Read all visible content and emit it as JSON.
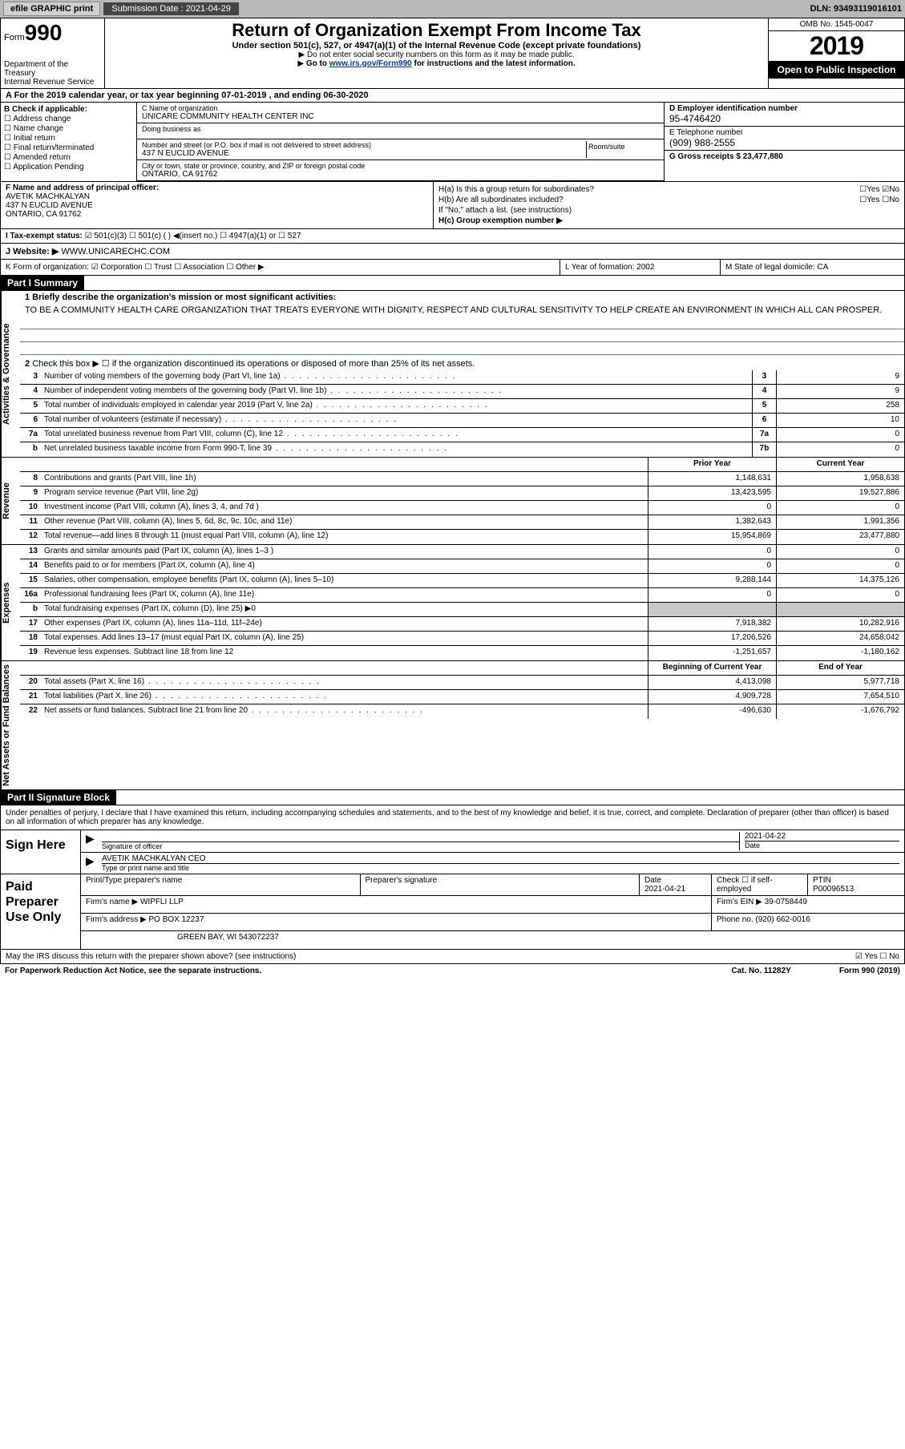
{
  "topbar": {
    "efile": "efile GRAPHIC print",
    "submission_label": "Submission Date : 2021-04-29",
    "dln": "DLN: 93493119016101"
  },
  "header": {
    "form_word": "Form",
    "form_num": "990",
    "dept1": "Department of the Treasury",
    "dept2": "Internal Revenue Service",
    "title": "Return of Organization Exempt From Income Tax",
    "sub1": "Under section 501(c), 527, or 4947(a)(1) of the Internal Revenue Code (except private foundations)",
    "sub2": "Do not enter social security numbers on this form as it may be made public.",
    "sub3_pre": "Go to ",
    "sub3_link": "www.irs.gov/Form990",
    "sub3_post": " for instructions and the latest information.",
    "omb": "OMB No. 1545-0047",
    "year": "2019",
    "otp": "Open to Public Inspection"
  },
  "row_a": "A For the 2019 calendar year, or tax year beginning 07-01-2019   , and ending 06-30-2020",
  "col_b": {
    "title": "B Check if applicable:",
    "items": [
      "Address change",
      "Name change",
      "Initial return",
      "Final return/terminated",
      "Amended return",
      "Application Pending"
    ]
  },
  "col_c": {
    "name_lbl": "C Name of organization",
    "name": "UNICARE COMMUNITY HEALTH CENTER INC",
    "dba_lbl": "Doing business as",
    "dba": "",
    "addr_lbl": "Number and street (or P.O. box if mail is not delivered to street address)",
    "addr": "437 N EUCLID AVENUE",
    "room_lbl": "Room/suite",
    "city_lbl": "City or town, state or province, country, and ZIP or foreign postal code",
    "city": "ONTARIO, CA  91762"
  },
  "col_d": {
    "ein_lbl": "D Employer identification number",
    "ein": "95-4746420",
    "tel_lbl": "E Telephone number",
    "tel": "(909) 988-2555",
    "gross_lbl": "G Gross receipts $ 23,477,880"
  },
  "col_f": {
    "lbl": "F  Name and address of principal officer:",
    "name": "AVETIK MACHKALYAN",
    "addr1": "437 N EUCLID AVENUE",
    "addr2": "ONTARIO, CA  91762"
  },
  "col_h": {
    "ha": "H(a)  Is this a group return for subordinates?",
    "ha_ans": "☐Yes ☑No",
    "hb": "H(b)  Are all subordinates included?",
    "hb_ans": "☐Yes ☐No",
    "hb_note": "If \"No,\" attach a list. (see instructions)",
    "hc": "H(c)  Group exemption number ▶"
  },
  "tax_status": {
    "lbl": "I   Tax-exempt status:",
    "opts": "☑ 501(c)(3)   ☐ 501(c) (  ) ◀(insert no.)   ☐ 4947(a)(1) or   ☐ 527"
  },
  "website": {
    "lbl": "J   Website: ▶",
    "val": "WWW.UNICARECHC.COM"
  },
  "klm": {
    "k": "K Form of organization:  ☑ Corporation  ☐ Trust  ☐ Association  ☐ Other ▶",
    "l": "L Year of formation: 2002",
    "m": "M State of legal domicile: CA"
  },
  "part1": {
    "hdr": "Part I      Summary",
    "line1": "1  Briefly describe the organization's mission or most significant activities:",
    "mission": "TO BE A COMMUNITY HEALTH CARE ORGANIZATION THAT TREATS EVERYONE WITH DIGNITY, RESPECT AND CULTURAL SENSITIVITY TO HELP CREATE AN ENVIRONMENT IN WHICH ALL CAN PROSPER.",
    "line2": "Check this box ▶ ☐  if the organization discontinued its operations or disposed of more than 25% of its net assets."
  },
  "sections": {
    "activities": "Activities & Governance",
    "revenue": "Revenue",
    "expenses": "Expenses",
    "netassets": "Net Assets or Fund Balances"
  },
  "gov_rows": [
    {
      "n": "3",
      "d": "Number of voting members of the governing body (Part VI, line 1a)",
      "b": "3",
      "v": "9"
    },
    {
      "n": "4",
      "d": "Number of independent voting members of the governing body (Part VI, line 1b)",
      "b": "4",
      "v": "9"
    },
    {
      "n": "5",
      "d": "Total number of individuals employed in calendar year 2019 (Part V, line 2a)",
      "b": "5",
      "v": "258"
    },
    {
      "n": "6",
      "d": "Total number of volunteers (estimate if necessary)",
      "b": "6",
      "v": "10"
    },
    {
      "n": "7a",
      "d": "Total unrelated business revenue from Part VIII, column (C), line 12",
      "b": "7a",
      "v": "0"
    },
    {
      "n": "b",
      "d": "Net unrelated business taxable income from Form 990-T, line 39",
      "b": "7b",
      "v": "0"
    }
  ],
  "two_col_hdr": {
    "py": "Prior Year",
    "cy": "Current Year"
  },
  "rev_rows": [
    {
      "n": "8",
      "d": "Contributions and grants (Part VIII, line 1h)",
      "py": "1,148,631",
      "cy": "1,958,638"
    },
    {
      "n": "9",
      "d": "Program service revenue (Part VIII, line 2g)",
      "py": "13,423,595",
      "cy": "19,527,886"
    },
    {
      "n": "10",
      "d": "Investment income (Part VIII, column (A), lines 3, 4, and 7d )",
      "py": "0",
      "cy": "0"
    },
    {
      "n": "11",
      "d": "Other revenue (Part VIII, column (A), lines 5, 6d, 8c, 9c, 10c, and 11e)",
      "py": "1,382,643",
      "cy": "1,991,356"
    },
    {
      "n": "12",
      "d": "Total revenue—add lines 8 through 11 (must equal Part VIII, column (A), line 12)",
      "py": "15,954,869",
      "cy": "23,477,880"
    }
  ],
  "exp_rows": [
    {
      "n": "13",
      "d": "Grants and similar amounts paid (Part IX, column (A), lines 1–3 )",
      "py": "0",
      "cy": "0"
    },
    {
      "n": "14",
      "d": "Benefits paid to or for members (Part IX, column (A), line 4)",
      "py": "0",
      "cy": "0"
    },
    {
      "n": "15",
      "d": "Salaries, other compensation, employee benefits (Part IX, column (A), lines 5–10)",
      "py": "9,288,144",
      "cy": "14,375,126"
    },
    {
      "n": "16a",
      "d": "Professional fundraising fees (Part IX, column (A), line 11e)",
      "py": "0",
      "cy": "0"
    },
    {
      "n": "b",
      "d": "Total fundraising expenses (Part IX, column (D), line 25) ▶0",
      "py": "shade",
      "cy": "shade"
    },
    {
      "n": "17",
      "d": "Other expenses (Part IX, column (A), lines 11a–11d, 11f–24e)",
      "py": "7,918,382",
      "cy": "10,282,916"
    },
    {
      "n": "18",
      "d": "Total expenses. Add lines 13–17 (must equal Part IX, column (A), line 25)",
      "py": "17,206,526",
      "cy": "24,658,042"
    },
    {
      "n": "19",
      "d": "Revenue less expenses. Subtract line 18 from line 12",
      "py": "-1,251,657",
      "cy": "-1,180,162"
    }
  ],
  "na_hdr": {
    "py": "Beginning of Current Year",
    "cy": "End of Year"
  },
  "na_rows": [
    {
      "n": "20",
      "d": "Total assets (Part X, line 16)",
      "py": "4,413,098",
      "cy": "5,977,718"
    },
    {
      "n": "21",
      "d": "Total liabilities (Part X, line 26)",
      "py": "4,909,728",
      "cy": "7,654,510"
    },
    {
      "n": "22",
      "d": "Net assets or fund balances. Subtract line 21 from line 20",
      "py": "-496,630",
      "cy": "-1,676,792"
    }
  ],
  "part2": {
    "hdr": "Part II      Signature Block",
    "decl": "Under penalties of perjury, I declare that I have examined this return, including accompanying schedules and statements, and to the best of my knowledge and belief, it is true, correct, and complete. Declaration of preparer (other than officer) is based on all information of which preparer has any knowledge."
  },
  "sign": {
    "lbl": "Sign Here",
    "sig_lbl": "Signature of officer",
    "date_lbl": "Date",
    "date": "2021-04-22",
    "name": "AVETIK MACHKALYAN  CEO",
    "name_lbl": "Type or print name and title"
  },
  "prep": {
    "lbl": "Paid Preparer Use Only",
    "r1": {
      "a": "Print/Type preparer's name",
      "b": "Preparer's signature",
      "c": "Date\n2021-04-21",
      "d": "Check ☐ if self-employed",
      "e": "PTIN\nP00096513"
    },
    "r2": {
      "a": "Firm's name    ▶ WIPFLI LLP",
      "b": "Firm's EIN ▶ 39-0758449"
    },
    "r3": {
      "a": "Firm's address ▶ PO BOX 12237",
      "b": "Phone no. (920) 662-0016"
    },
    "r4": "GREEN BAY, WI  543072237"
  },
  "irs_q": "May the IRS discuss this return with the preparer shown above? (see instructions)",
  "irs_a": "☑ Yes  ☐ No",
  "footer": {
    "l": "For Paperwork Reduction Act Notice, see the separate instructions.",
    "m": "Cat. No. 11282Y",
    "r": "Form 990 (2019)"
  }
}
